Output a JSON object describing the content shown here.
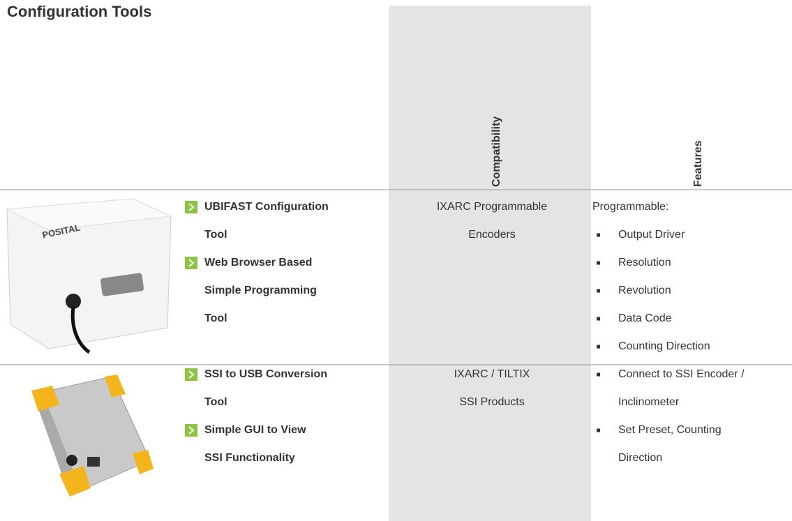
{
  "title": "Configuration Tools",
  "columns": [
    "Compatibility",
    "Features"
  ],
  "rows": [
    {
      "product": [
        {
          "lines": [
            "UBIFAST Configuration",
            "Tool"
          ]
        },
        {
          "lines": [
            "Web Browser Based",
            "Simple Programming",
            "Tool"
          ]
        }
      ],
      "compatibility": [
        "IXARC Programmable",
        "Encoders"
      ],
      "features": {
        "intro": "Programmable:",
        "bullets": [
          {
            "lines": [
              "Output Driver"
            ]
          },
          {
            "lines": [
              "Resolution"
            ]
          },
          {
            "lines": [
              "Revolution"
            ]
          },
          {
            "lines": [
              "Data Code"
            ]
          },
          {
            "lines": [
              "Counting Direction"
            ]
          }
        ]
      }
    },
    {
      "product": [
        {
          "lines": [
            "SSI to USB Conversion",
            "Tool"
          ]
        },
        {
          "lines": [
            "Simple GUI to View",
            "SSI Functionality"
          ]
        }
      ],
      "compatibility": [
        "IXARC / TILTIX",
        "SSI Products"
      ],
      "features": {
        "bullets": [
          {
            "lines": [
              "Connect to SSI Encoder /",
              "Inclinometer"
            ]
          },
          {
            "lines": [
              "Set Preset, Counting",
              "Direction"
            ]
          }
        ]
      }
    }
  ]
}
